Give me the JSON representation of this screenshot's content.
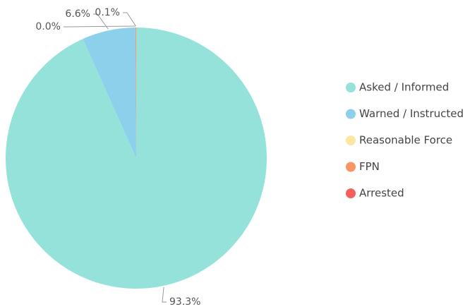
{
  "chart_data": {
    "type": "pie",
    "categories": [
      "Asked / Informed",
      "Warned / Instructed",
      "Reasonable Force",
      "FPN",
      "Arrested"
    ],
    "values": [
      93.3,
      6.6,
      0.0,
      0.1,
      null
    ],
    "value_labels": [
      "93.3%",
      "6.6%",
      "0.0%",
      "0.1%",
      null
    ],
    "colors": [
      "#95e2da",
      "#8dd0ec",
      "#fde6a0",
      "#fa9566",
      "#f5605e"
    ],
    "legend": "right"
  }
}
